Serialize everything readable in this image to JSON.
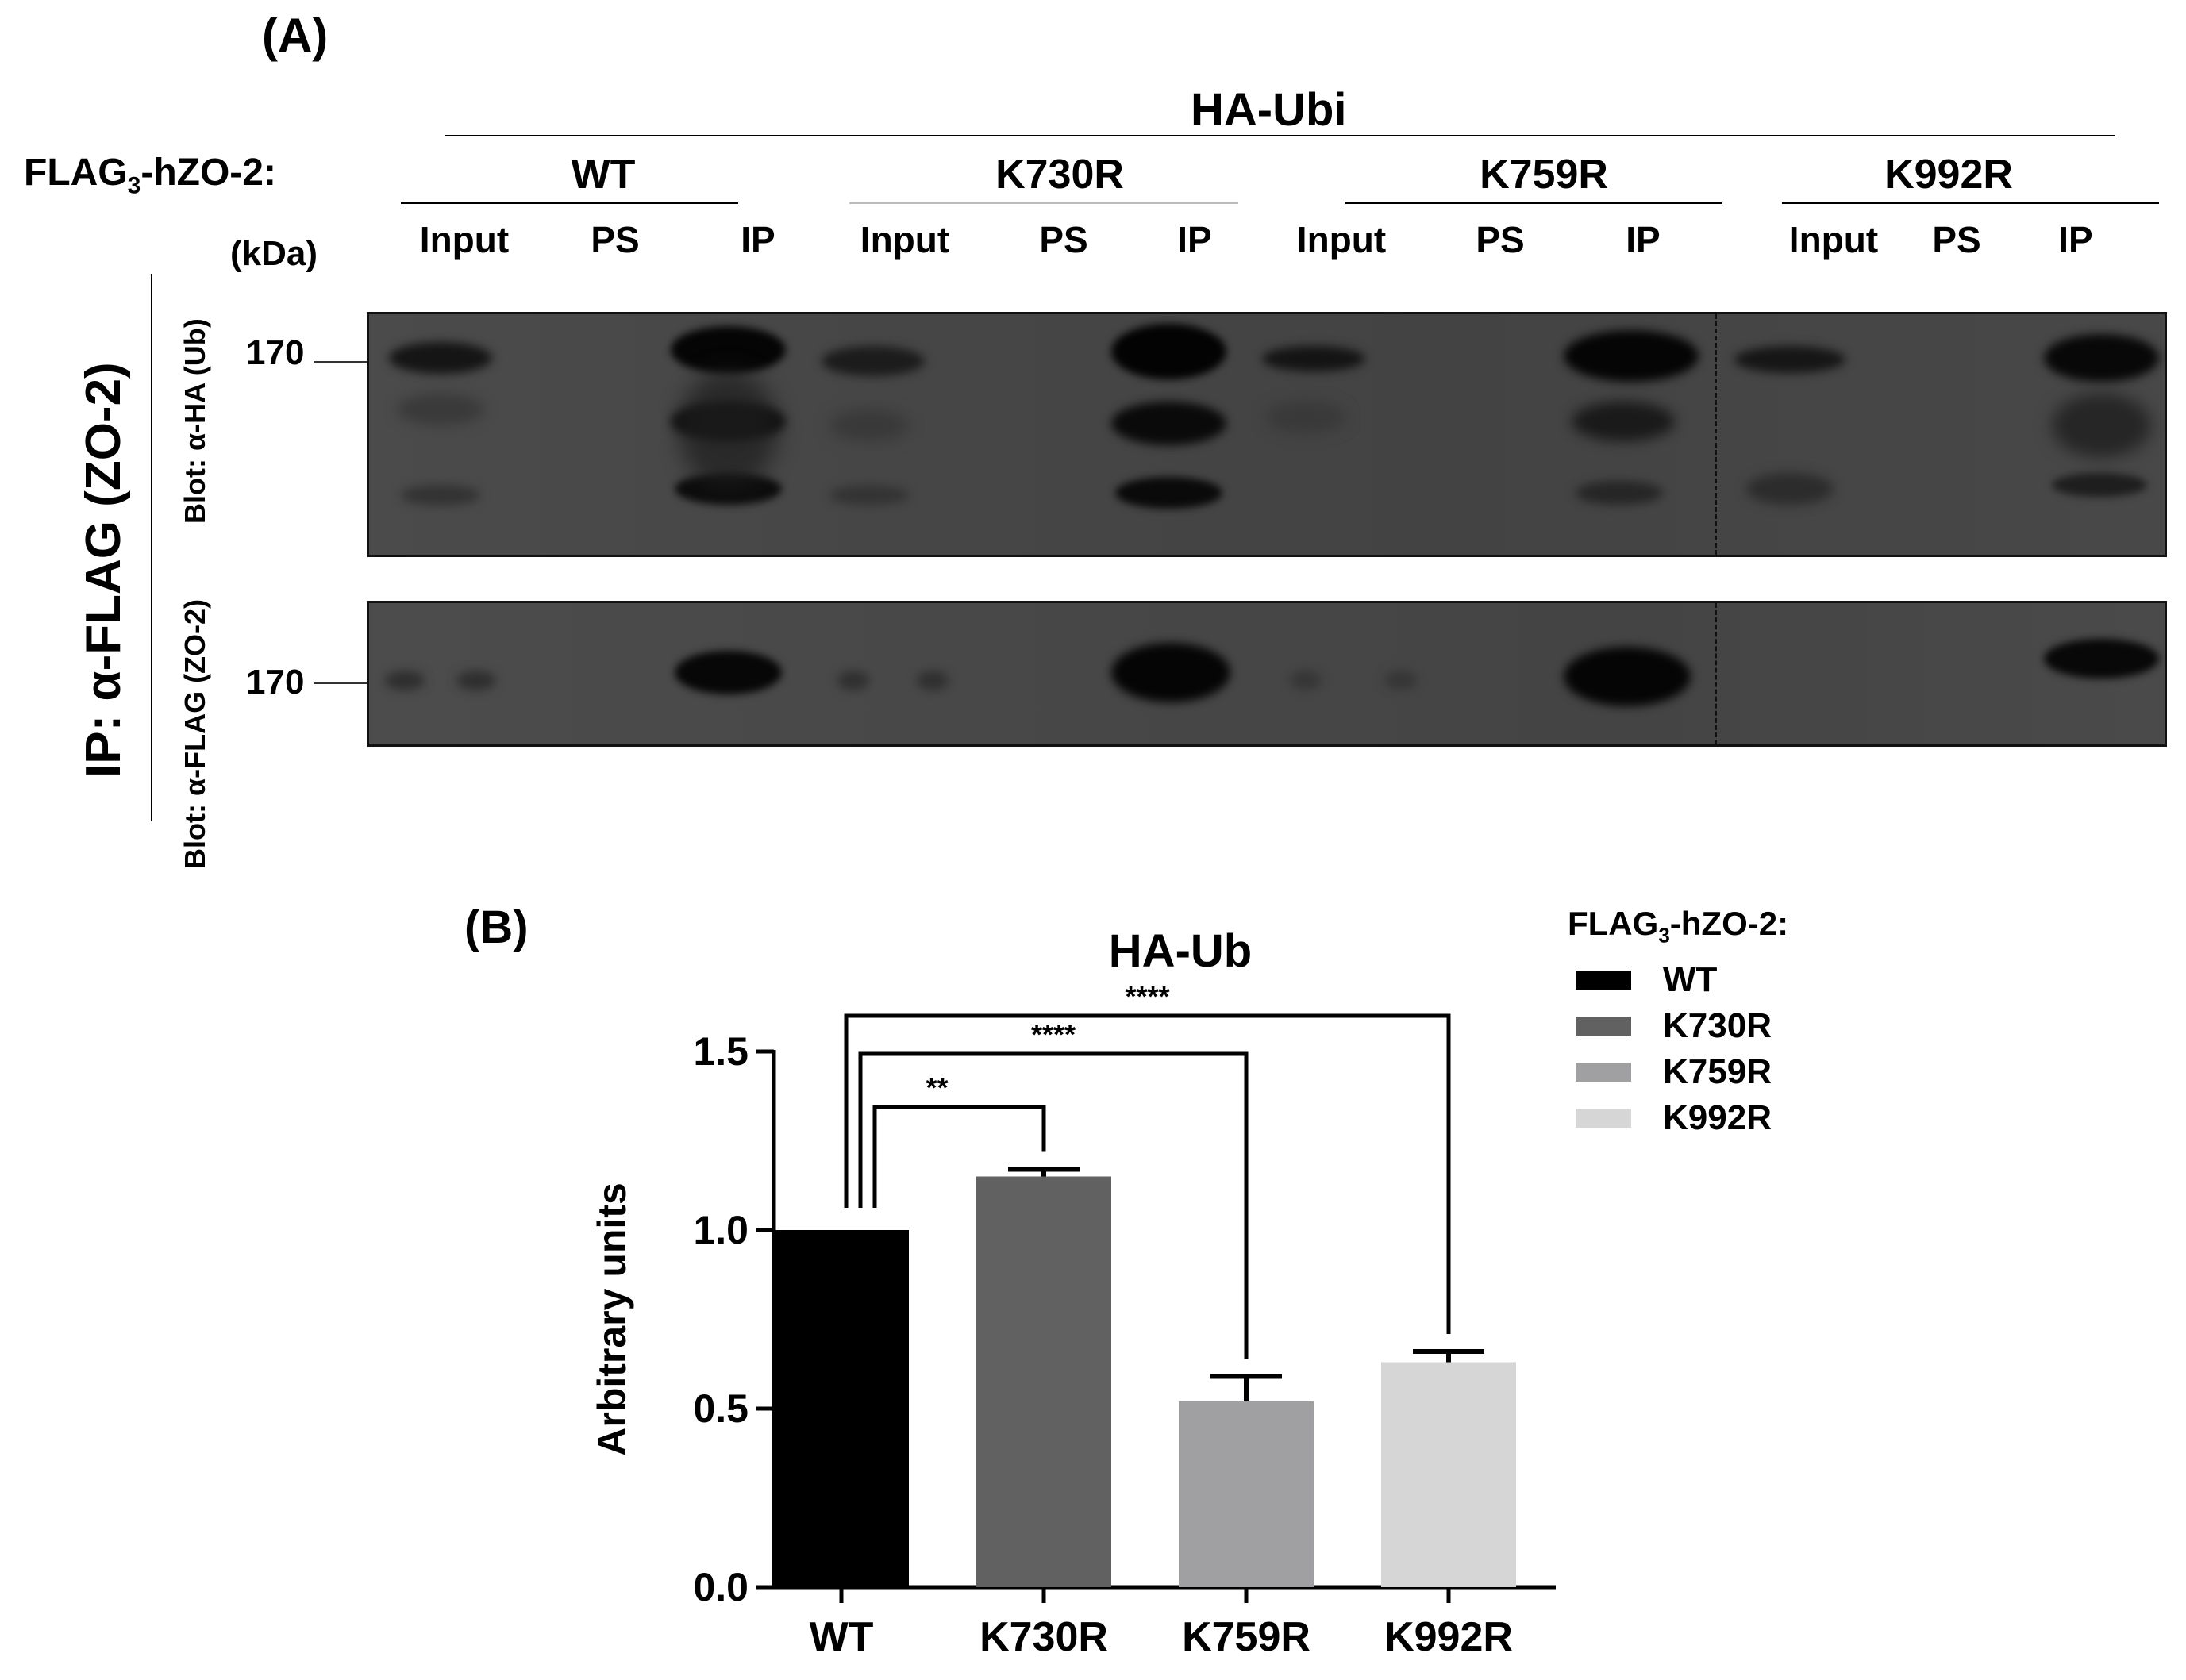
{
  "panel_a": {
    "label": "(A)",
    "ha_ubi": "HA-Ubi",
    "flag_prefix": "FLAG",
    "flag_sub": "3",
    "flag_suffix": "-hZO-2:",
    "kda": "(kDa)",
    "groups": [
      "WT",
      "K730R",
      "K759R",
      "K992R"
    ],
    "lanes": [
      "Input",
      "PS",
      "IP"
    ],
    "marker": "170",
    "ip_label": "IP: α-FLAG (ZO-2)",
    "blot_top_label": "Blot: α-HA  (Ub)",
    "blot_bottom_label": "Blot: α-FLAG (ZO-2)"
  },
  "panel_b": {
    "label": "(B)",
    "legend_title_prefix": "FLAG",
    "legend_title_sub": "3",
    "legend_title_suffix": "-hZO-2:"
  },
  "chart_data": {
    "type": "bar",
    "title": "HA-Ub",
    "ylabel": "Arbitrary units",
    "xlabel": "",
    "categories": [
      "WT",
      "K730R",
      "K759R",
      "K992R"
    ],
    "values": [
      1.0,
      1.15,
      0.52,
      0.63
    ],
    "errors": [
      0.0,
      0.02,
      0.07,
      0.03
    ],
    "colors": [
      "#000000",
      "#616161",
      "#a0a0a2",
      "#d6d6d6"
    ],
    "ylim": [
      0.0,
      1.5
    ],
    "yticks": [
      "0.0",
      "0.5",
      "1.0",
      "1.5"
    ],
    "significance": [
      {
        "from": "WT",
        "to": "K730R",
        "label": "**"
      },
      {
        "from": "WT",
        "to": "K759R",
        "label": "****"
      },
      {
        "from": "WT",
        "to": "K992R",
        "label": "****"
      }
    ],
    "legend": [
      "WT",
      "K730R",
      "K759R",
      "K992R"
    ],
    "legend_position": "top-right"
  }
}
